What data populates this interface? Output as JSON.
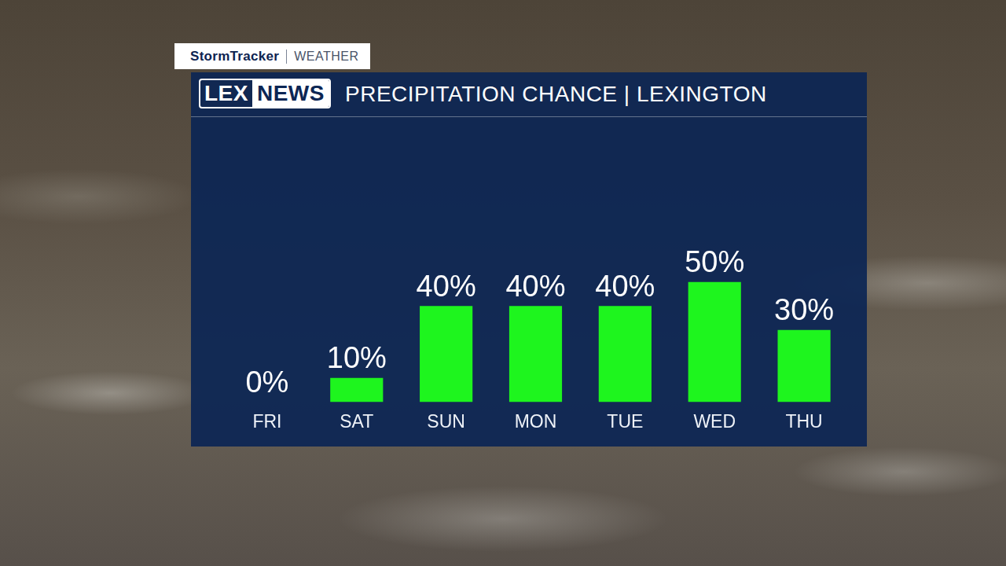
{
  "brand": {
    "name": "StormTracker",
    "section": "WEATHER"
  },
  "logo": {
    "left": "LEX",
    "right": "NEWS"
  },
  "chart_data": {
    "type": "bar",
    "title": "PRECIPITATION CHANCE | LEXINGTON",
    "categories": [
      "FRI",
      "SAT",
      "SUN",
      "MON",
      "TUE",
      "WED",
      "THU"
    ],
    "values": [
      0,
      10,
      40,
      40,
      40,
      50,
      30
    ],
    "value_labels": [
      "0%",
      "10%",
      "40%",
      "40%",
      "40%",
      "50%",
      "30%"
    ],
    "color": "#1ef51e",
    "ylim": [
      0,
      100
    ],
    "grid": false,
    "data_labels": true,
    "tick_labels": "x"
  }
}
